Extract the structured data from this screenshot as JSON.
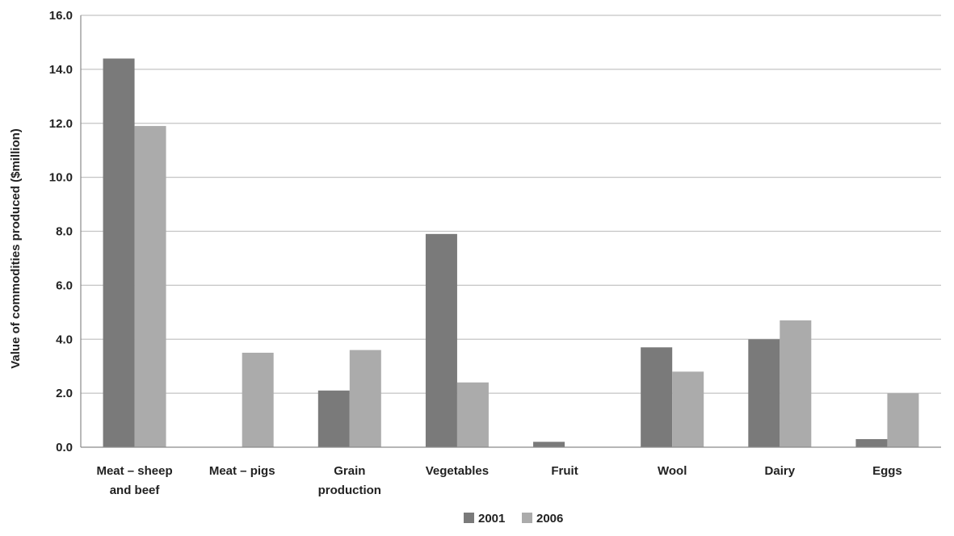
{
  "chart_data": {
    "type": "bar",
    "title": "",
    "xlabel": "",
    "ylabel": "Value of commodities produced ($million)",
    "categories": [
      [
        "Meat – sheep",
        "and beef"
      ],
      [
        "Meat – pigs"
      ],
      [
        "Grain",
        "production"
      ],
      [
        "Vegetables"
      ],
      [
        "Fruit"
      ],
      [
        "Wool"
      ],
      [
        "Dairy"
      ],
      [
        "Eggs"
      ]
    ],
    "series": [
      {
        "name": "2001",
        "color": "#7a7a7a",
        "values": [
          14.4,
          0,
          2.1,
          7.9,
          0.2,
          3.7,
          4.0,
          0.3
        ]
      },
      {
        "name": "2006",
        "color": "#ababab",
        "values": [
          11.9,
          3.5,
          3.6,
          2.4,
          0,
          2.8,
          4.7,
          2.0
        ]
      }
    ],
    "ylim": [
      0,
      16
    ],
    "yticks": [
      "0.0",
      "2.0",
      "4.0",
      "6.0",
      "8.0",
      "10.0",
      "12.0",
      "14.0",
      "16.0"
    ],
    "grid": true,
    "legend_position": "bottom-center"
  }
}
